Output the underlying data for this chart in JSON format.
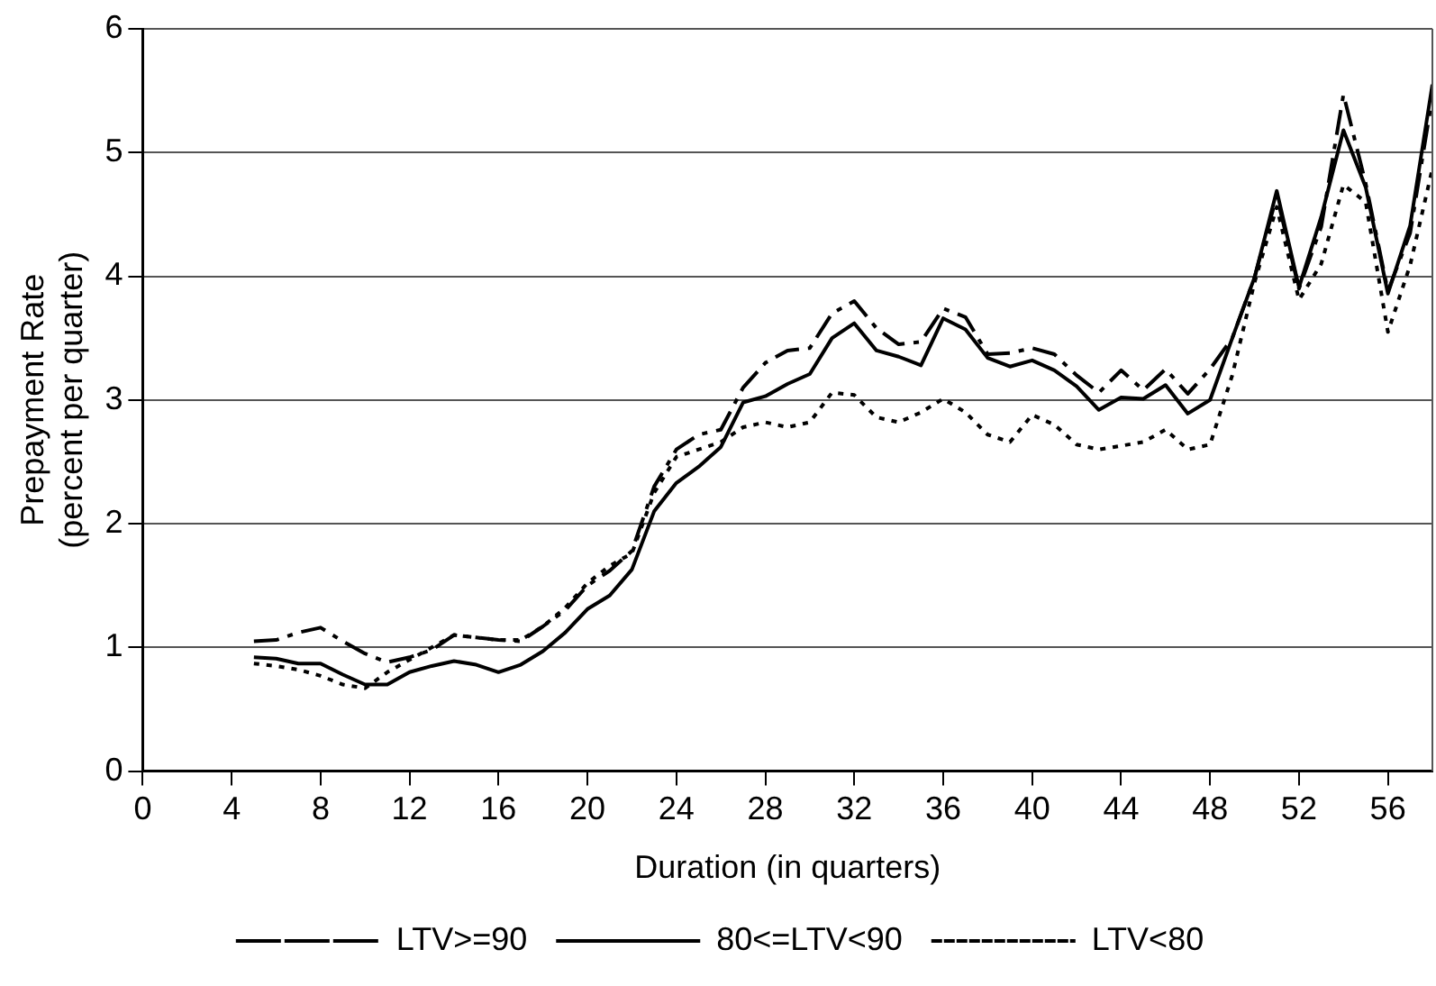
{
  "chart_data": {
    "type": "line",
    "xlabel": "Duration (in quarters)",
    "ylabel": "Prepayment Rate\n(percent per quarter)",
    "x": [
      5,
      6,
      7,
      8,
      9,
      10,
      11,
      12,
      13,
      14,
      15,
      16,
      17,
      18,
      19,
      20,
      21,
      22,
      23,
      24,
      25,
      26,
      27,
      28,
      29,
      30,
      31,
      32,
      33,
      34,
      35,
      36,
      37,
      38,
      39,
      40,
      41,
      42,
      43,
      44,
      45,
      46,
      47,
      48,
      49,
      50,
      51,
      52,
      53,
      54,
      55,
      56,
      57,
      58
    ],
    "series": [
      {
        "name": "LTV>=90",
        "color": "#000000",
        "line_style": "dashdot",
        "values": [
          1.05,
          1.06,
          1.12,
          1.16,
          1.05,
          0.95,
          0.88,
          0.92,
          0.98,
          1.1,
          1.08,
          1.06,
          1.05,
          1.17,
          1.3,
          1.5,
          1.62,
          1.78,
          2.3,
          2.6,
          2.72,
          2.76,
          3.1,
          3.3,
          3.4,
          3.42,
          3.7,
          3.8,
          3.58,
          3.45,
          3.47,
          3.74,
          3.67,
          3.37,
          3.38,
          3.42,
          3.37,
          3.2,
          3.06,
          3.24,
          3.08,
          3.25,
          3.05,
          3.25,
          3.5,
          3.99,
          4.65,
          3.9,
          4.4,
          5.47,
          4.75,
          3.88,
          4.35,
          5.45
        ]
      },
      {
        "name": "80<=LTV<90",
        "color": "#000000",
        "line_style": "solid",
        "values": [
          0.92,
          0.91,
          0.87,
          0.87,
          0.78,
          0.7,
          0.7,
          0.8,
          0.85,
          0.89,
          0.86,
          0.8,
          0.86,
          0.97,
          1.12,
          1.31,
          1.42,
          1.63,
          2.1,
          2.33,
          2.46,
          2.62,
          2.98,
          3.03,
          3.13,
          3.21,
          3.5,
          3.62,
          3.4,
          3.35,
          3.28,
          3.66,
          3.57,
          3.34,
          3.27,
          3.32,
          3.24,
          3.11,
          2.92,
          3.02,
          3.01,
          3.12,
          2.89,
          3.0,
          3.5,
          3.99,
          4.69,
          3.91,
          4.48,
          5.18,
          4.72,
          3.86,
          4.41,
          5.55
        ]
      },
      {
        "name": "LTV<80",
        "color": "#000000",
        "line_style": "dotted",
        "values": [
          0.87,
          0.85,
          0.82,
          0.77,
          0.7,
          0.67,
          0.8,
          0.9,
          1.0,
          1.1,
          1.08,
          1.06,
          1.06,
          1.17,
          1.32,
          1.52,
          1.66,
          1.76,
          2.25,
          2.54,
          2.6,
          2.66,
          2.78,
          2.82,
          2.78,
          2.82,
          3.06,
          3.04,
          2.86,
          2.82,
          2.9,
          3.01,
          2.9,
          2.72,
          2.66,
          2.88,
          2.8,
          2.64,
          2.6,
          2.63,
          2.66,
          2.76,
          2.6,
          2.64,
          3.2,
          3.95,
          4.56,
          3.81,
          4.1,
          4.74,
          4.6,
          3.55,
          4.09,
          4.87
        ]
      }
    ],
    "xlim": [
      0,
      58
    ],
    "xticks": [
      0,
      4,
      8,
      12,
      16,
      20,
      24,
      28,
      32,
      36,
      40,
      44,
      48,
      52,
      56
    ],
    "ylim": [
      0,
      6
    ],
    "yticks": [
      0,
      1,
      2,
      3,
      4,
      5,
      6
    ],
    "grid": "y",
    "legend": "bottom",
    "marker": "none"
  }
}
